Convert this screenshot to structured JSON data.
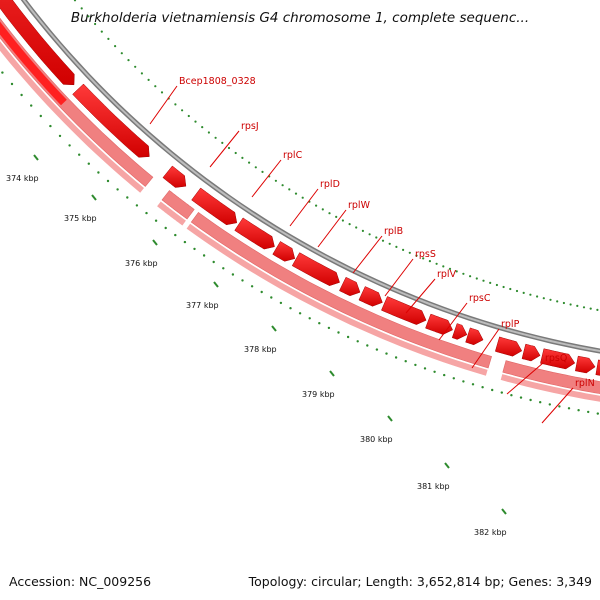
{
  "title": "Burkholderia vietnamiensis G4 chromosome 1, complete sequenc...",
  "footer": {
    "accession": "Accession: NC_009256",
    "stats": "Topology: circular; Length: 3,652,814 bp; Genes: 3,349"
  },
  "colors": {
    "gene_forward": "#ff0000",
    "gene_pale": "#f08080",
    "backbone": "#888888",
    "ticks": "#2e8b2e",
    "label_line": "#dd0000"
  },
  "ruler": {
    "labels": [
      "374 kbp",
      "375 kbp",
      "376 kbp",
      "377 kbp",
      "378 kbp",
      "379 kbp",
      "380 kbp",
      "381 kbp",
      "382 kbp"
    ]
  },
  "genes": [
    {
      "name": "Bcep1808_0328"
    },
    {
      "name": "rpsJ"
    },
    {
      "name": "rplC"
    },
    {
      "name": "rplD"
    },
    {
      "name": "rplW"
    },
    {
      "name": "rplB"
    },
    {
      "name": "rpsS"
    },
    {
      "name": "rplV"
    },
    {
      "name": "rpsC"
    },
    {
      "name": "rplP"
    },
    {
      "name": "rpsQ"
    },
    {
      "name": "rplN"
    }
  ]
}
